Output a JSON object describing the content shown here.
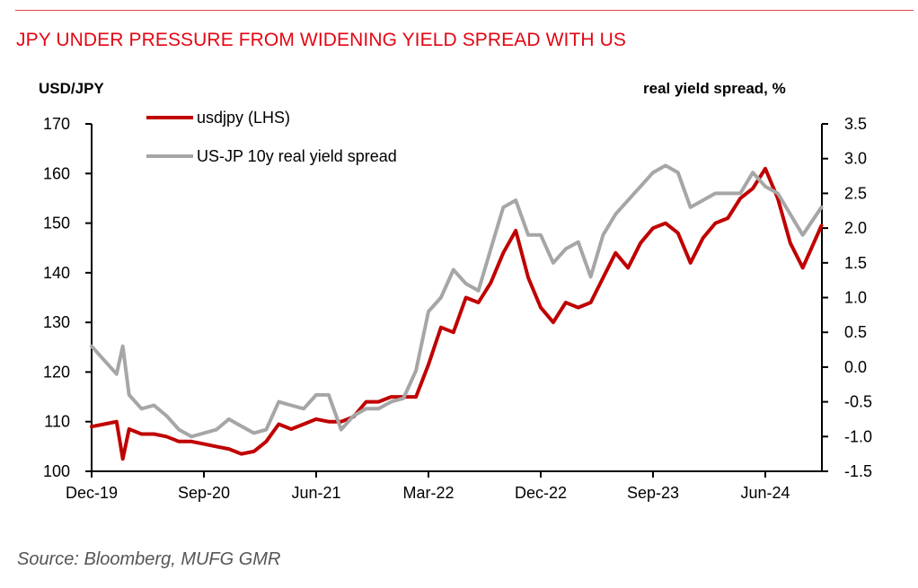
{
  "header": {
    "title": "JPY UNDER PRESSURE FROM WIDENING YIELD SPREAD WITH US"
  },
  "footer": {
    "source": "Source: Bloomberg, MUFG GMR"
  },
  "colors": {
    "usdjpy": "#c00000",
    "spread": "#a6a6a6",
    "title": "#e30613"
  },
  "chart_data": {
    "type": "line",
    "title": "JPY UNDER PRESSURE FROM WIDENING YIELD SPREAD WITH US",
    "ylabel_left": "USD/JPY",
    "ylabel_right": "real yield spread, %",
    "ylim_left": [
      100,
      170
    ],
    "ylim_right": [
      -1.5,
      3.5
    ],
    "yticks_left": [
      "100",
      "110",
      "120",
      "130",
      "140",
      "150",
      "160",
      "170"
    ],
    "yticks_right": [
      "-1.5",
      "-1.0",
      "-0.5",
      "0.0",
      "0.5",
      "1.0",
      "1.5",
      "2.0",
      "2.5",
      "3.0",
      "3.5"
    ],
    "xticks": [
      "Dec-19",
      "Sep-20",
      "Jun-21",
      "Mar-22",
      "Dec-22",
      "Sep-23",
      "Jun-24"
    ],
    "x_start": "Dec-19",
    "x_unit": "months since Dec-19",
    "legend": [
      "usdjpy (LHS)",
      "US-JP 10y real yield spread"
    ],
    "legend_position": "top-left",
    "grid": false,
    "series": [
      {
        "name": "usdjpy (LHS)",
        "axis": "left",
        "x": [
          0,
          1,
          2,
          2.5,
          3,
          4,
          5,
          6,
          7,
          8,
          9,
          10,
          11,
          12,
          13,
          14,
          15,
          16,
          17,
          18,
          19,
          20,
          21,
          22,
          23,
          24,
          25,
          26,
          27,
          28,
          29,
          30,
          31,
          32,
          33,
          34,
          35,
          36,
          37,
          38,
          39,
          40,
          41,
          42,
          43,
          44,
          45,
          46,
          47,
          48,
          49,
          50,
          51,
          52,
          53,
          54,
          55,
          56,
          57,
          58.5
        ],
        "values": [
          109,
          109.5,
          110,
          102.5,
          108.5,
          107.5,
          107.5,
          107,
          106,
          106,
          105.5,
          105,
          104.5,
          103.5,
          104,
          106,
          109.5,
          108.5,
          109.5,
          110.5,
          110,
          110,
          111,
          114,
          114,
          115,
          115,
          115,
          121.5,
          129,
          128,
          135,
          134,
          138,
          144,
          148.5,
          139,
          133,
          130,
          134,
          133,
          134,
          139,
          144,
          141,
          146,
          149,
          150,
          148,
          142,
          147,
          150,
          151,
          155,
          157,
          161,
          155,
          146,
          141,
          149.5
        ]
      },
      {
        "name": "US-JP 10y real yield spread",
        "axis": "right",
        "x": [
          0,
          1,
          2,
          2.5,
          3,
          4,
          5,
          6,
          7,
          8,
          9,
          10,
          11,
          12,
          13,
          14,
          15,
          16,
          17,
          18,
          19,
          20,
          21,
          22,
          23,
          24,
          25,
          26,
          27,
          28,
          29,
          30,
          31,
          32,
          33,
          34,
          35,
          36,
          37,
          38,
          39,
          40,
          41,
          42,
          43,
          44,
          45,
          46,
          47,
          48,
          49,
          50,
          51,
          52,
          53,
          54,
          55,
          56,
          57,
          58.5
        ],
        "values": [
          0.3,
          0.1,
          -0.1,
          0.3,
          -0.4,
          -0.6,
          -0.55,
          -0.7,
          -0.9,
          -1.0,
          -0.95,
          -0.9,
          -0.75,
          -0.85,
          -0.95,
          -0.9,
          -0.5,
          -0.55,
          -0.6,
          -0.4,
          -0.4,
          -0.9,
          -0.7,
          -0.6,
          -0.6,
          -0.5,
          -0.45,
          -0.05,
          0.8,
          1.0,
          1.4,
          1.2,
          1.1,
          1.7,
          2.3,
          2.4,
          1.9,
          1.9,
          1.5,
          1.7,
          1.8,
          1.3,
          1.9,
          2.2,
          2.4,
          2.6,
          2.8,
          2.9,
          2.8,
          2.3,
          2.4,
          2.5,
          2.5,
          2.5,
          2.8,
          2.6,
          2.5,
          2.2,
          1.9,
          2.3
        ]
      }
    ]
  }
}
